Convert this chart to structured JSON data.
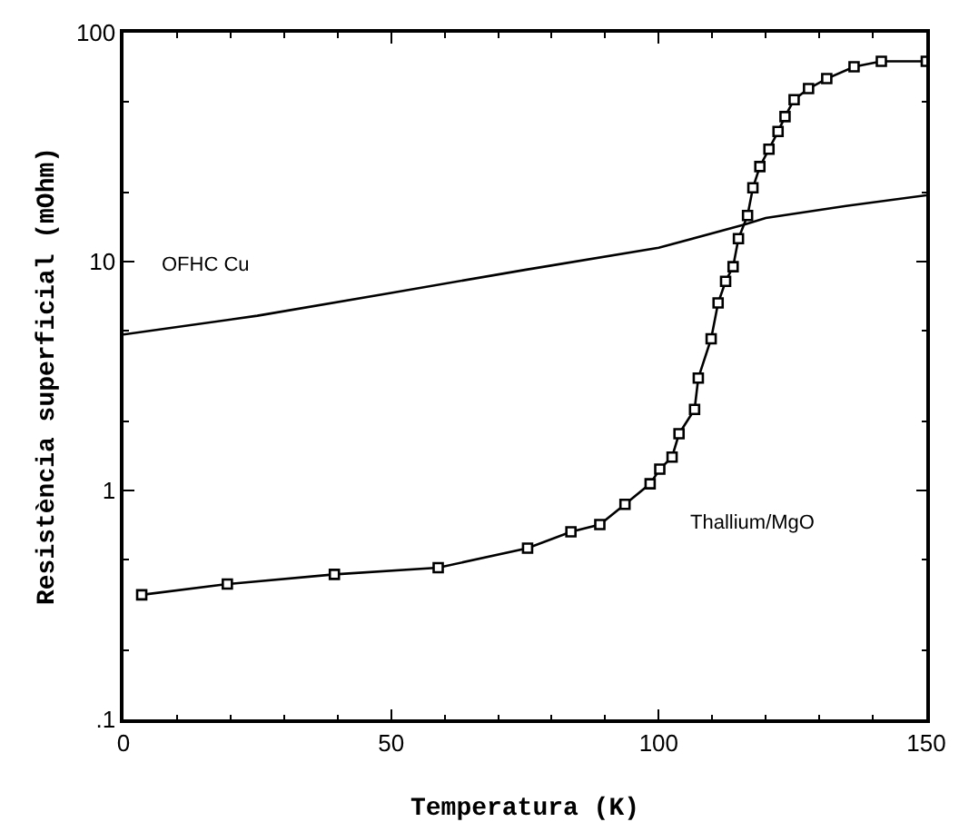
{
  "chart_data": {
    "type": "line",
    "xlabel": "Temperatura (K)",
    "ylabel": "Resistència superficial (mOhm)",
    "log": "y",
    "xlim": [
      0,
      150
    ],
    "xticks": [
      0,
      50,
      100,
      150
    ],
    "ylim": [
      0.1,
      100
    ],
    "yticks": [
      {
        "value": 0.1,
        "label": ".1"
      },
      1,
      10,
      100
    ],
    "grid": false,
    "legend": false,
    "line_style": "solid",
    "series": [
      {
        "name": "OFHC Cu",
        "color": "#000000",
        "marker": "none",
        "x": [
          0,
          25,
          50,
          75,
          100,
          116,
          120,
          135,
          150
        ],
        "values": [
          4.8,
          5.8,
          7.3,
          9.2,
          11.5,
          14.5,
          15.5,
          17.5,
          19.5
        ]
      },
      {
        "name": "Thallium/MgO",
        "color": "#000000",
        "marker": "square",
        "x": [
          3.4,
          19.4,
          39.4,
          58.8,
          75.5,
          83.6,
          89,
          93.7,
          98.4,
          100.2,
          102.5,
          103.8,
          106.7,
          107.4,
          109.8,
          111.1,
          112.5,
          113.9,
          114.9,
          116.6,
          117.6,
          118.9,
          120.6,
          122.3,
          123.6,
          125.3,
          128,
          131.4,
          136.5,
          141.6,
          150
        ],
        "values": [
          0.35,
          0.39,
          0.43,
          0.46,
          0.56,
          0.66,
          0.71,
          0.87,
          1.07,
          1.24,
          1.4,
          1.77,
          2.26,
          3.1,
          4.6,
          6.6,
          8.2,
          9.5,
          12.6,
          15.9,
          21,
          26,
          31,
          37,
          43,
          51,
          57,
          63,
          71,
          75,
          75
        ]
      }
    ]
  }
}
